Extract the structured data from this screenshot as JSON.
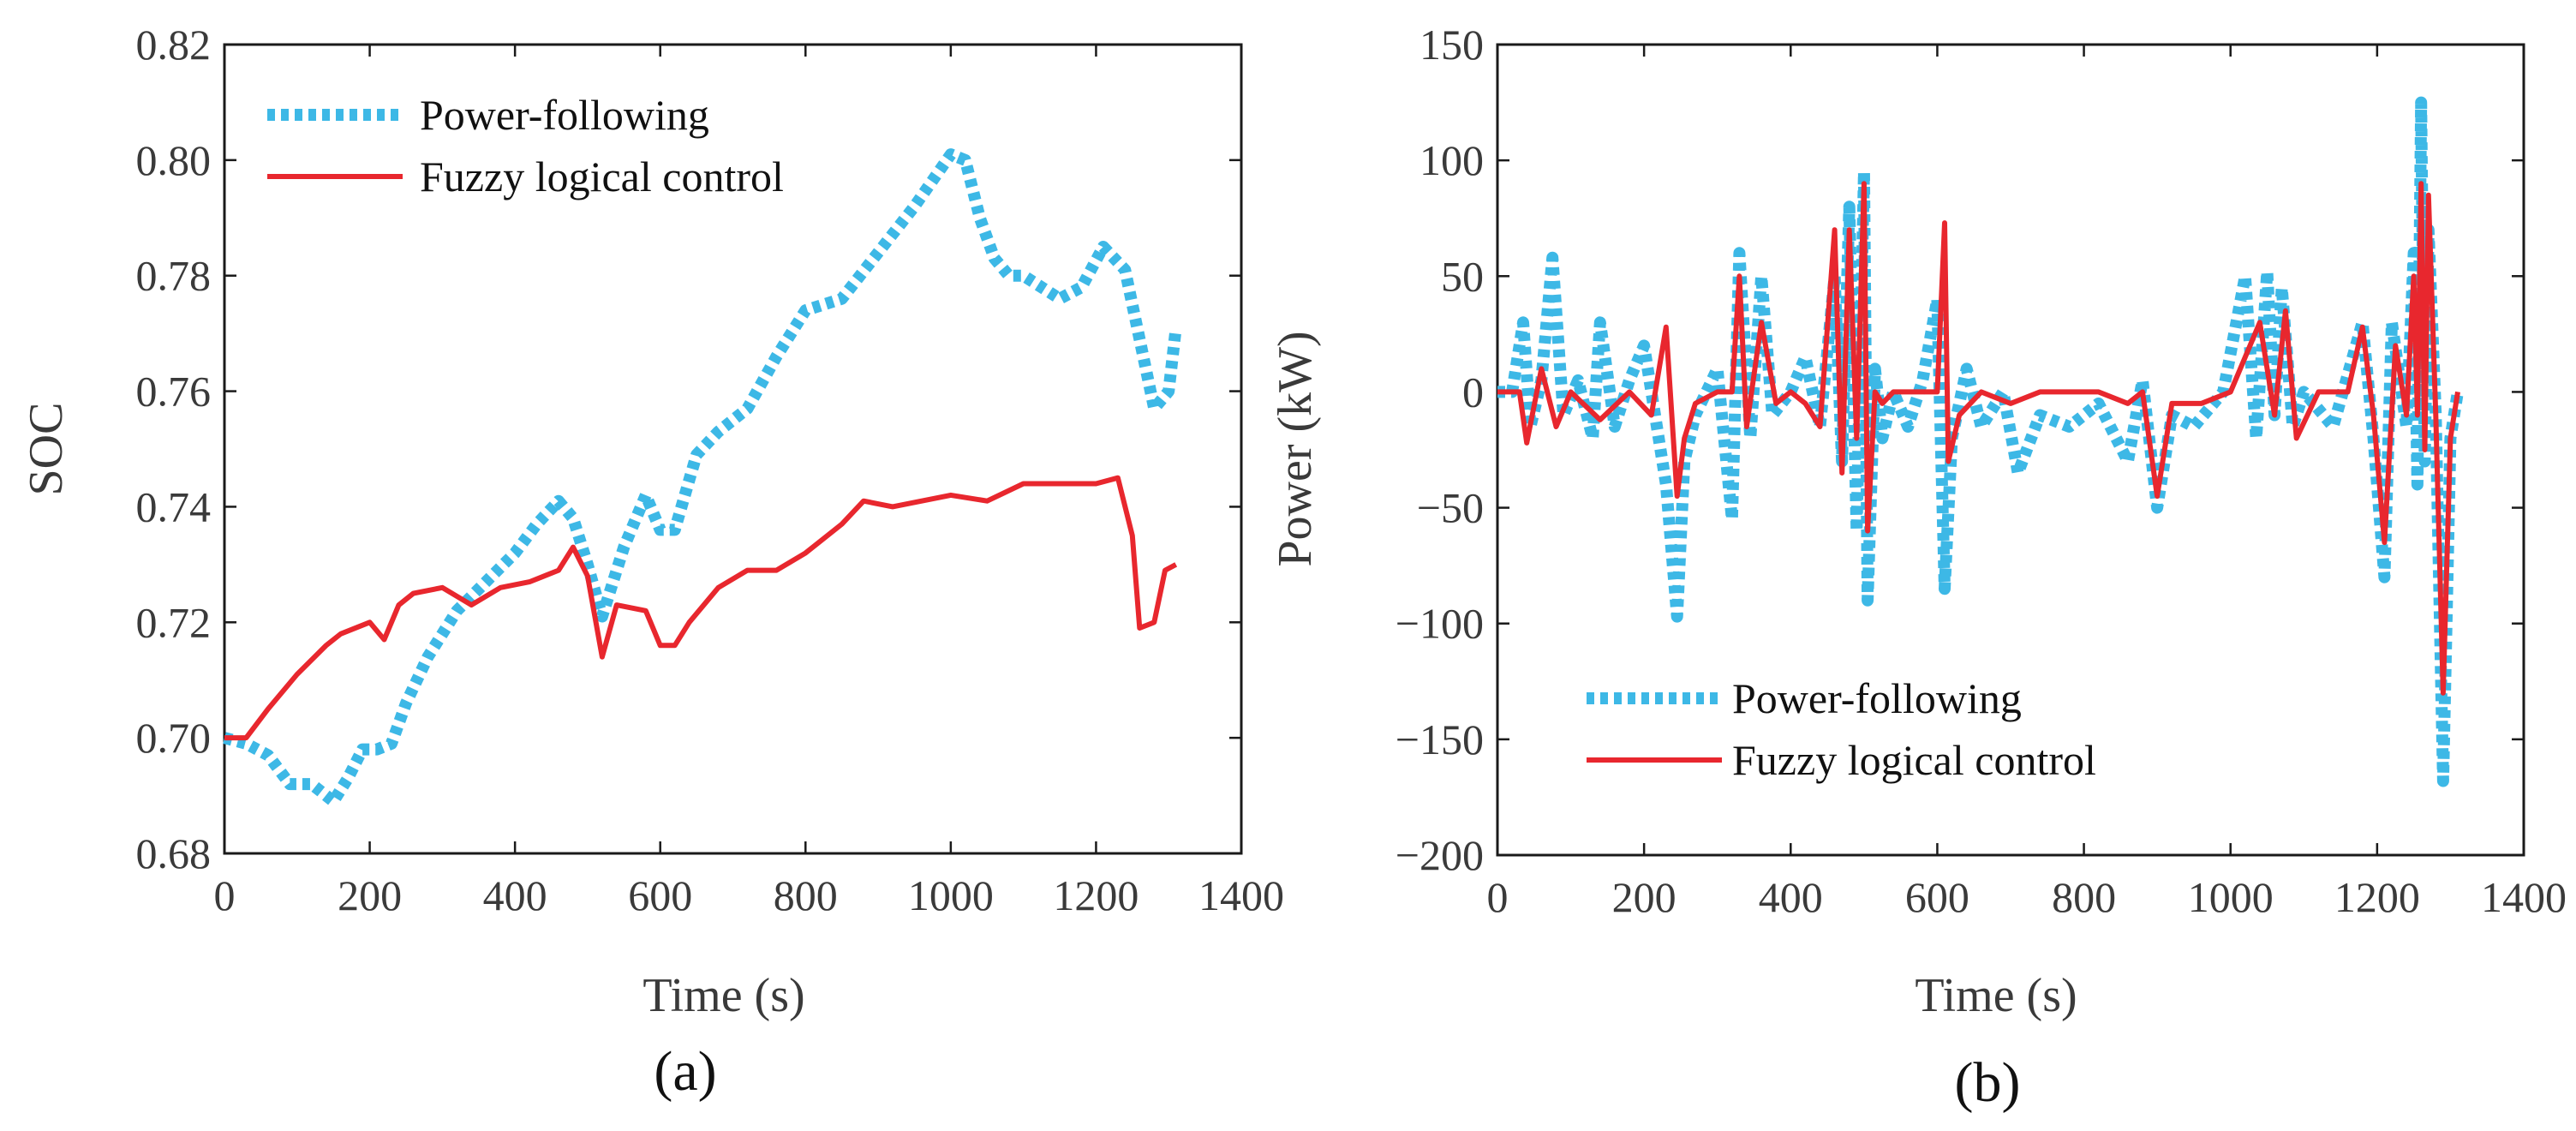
{
  "chart_data": [
    {
      "type": "line",
      "panel_label": "(a)",
      "xlabel": "Time (s)",
      "ylabel": "SOC",
      "xlim": [
        0,
        1400
      ],
      "ylim": [
        0.68,
        0.82
      ],
      "xticks": [
        0,
        200,
        400,
        600,
        800,
        1000,
        1200,
        1400
      ],
      "yticks": [
        0.68,
        0.7,
        0.72,
        0.74,
        0.76,
        0.78,
        0.8,
        0.82
      ],
      "xtick_labels": [
        "0",
        "200",
        "400",
        "600",
        "800",
        "1000",
        "1200",
        "1400"
      ],
      "ytick_labels": [
        "0.68",
        "0.70",
        "0.72",
        "0.74",
        "0.76",
        "0.78",
        "0.80",
        "0.82"
      ],
      "legend_position": "top-left",
      "series": [
        {
          "name": "Power-following",
          "color": "#3db8e6",
          "style": "dotted",
          "x": [
            0,
            30,
            60,
            90,
            120,
            150,
            170,
            190,
            210,
            230,
            250,
            280,
            320,
            360,
            400,
            430,
            460,
            480,
            500,
            520,
            550,
            580,
            600,
            620,
            650,
            680,
            720,
            760,
            800,
            850,
            900,
            950,
            1000,
            1020,
            1040,
            1060,
            1080,
            1100,
            1150,
            1180,
            1210,
            1240,
            1260,
            1280,
            1300,
            1310
          ],
          "y": [
            0.7,
            0.699,
            0.697,
            0.692,
            0.692,
            0.689,
            0.693,
            0.698,
            0.698,
            0.699,
            0.706,
            0.714,
            0.722,
            0.727,
            0.732,
            0.737,
            0.741,
            0.738,
            0.73,
            0.721,
            0.733,
            0.742,
            0.736,
            0.736,
            0.749,
            0.753,
            0.757,
            0.766,
            0.774,
            0.776,
            0.784,
            0.792,
            0.801,
            0.8,
            0.79,
            0.783,
            0.78,
            0.78,
            0.776,
            0.778,
            0.785,
            0.781,
            0.769,
            0.757,
            0.76,
            0.771
          ]
        },
        {
          "name": "Fuzzy logical control",
          "color": "#e8272e",
          "style": "solid",
          "x": [
            0,
            30,
            60,
            100,
            140,
            160,
            200,
            220,
            240,
            260,
            300,
            340,
            380,
            420,
            460,
            480,
            500,
            520,
            540,
            580,
            600,
            620,
            640,
            680,
            720,
            760,
            800,
            850,
            880,
            920,
            960,
            1000,
            1050,
            1100,
            1150,
            1200,
            1230,
            1250,
            1260,
            1280,
            1295,
            1310
          ],
          "y": [
            0.7,
            0.7,
            0.705,
            0.711,
            0.716,
            0.718,
            0.72,
            0.717,
            0.723,
            0.725,
            0.726,
            0.723,
            0.726,
            0.727,
            0.729,
            0.733,
            0.728,
            0.714,
            0.723,
            0.722,
            0.716,
            0.716,
            0.72,
            0.726,
            0.729,
            0.729,
            0.732,
            0.737,
            0.741,
            0.74,
            0.741,
            0.742,
            0.741,
            0.744,
            0.744,
            0.744,
            0.745,
            0.735,
            0.719,
            0.72,
            0.729,
            0.73
          ]
        }
      ]
    },
    {
      "type": "line",
      "panel_label": "(b)",
      "xlabel": "Time (s)",
      "ylabel": "Power (kW)",
      "xlim": [
        0,
        1400
      ],
      "ylim": [
        -200,
        150
      ],
      "xticks": [
        0,
        200,
        400,
        600,
        800,
        1000,
        1200,
        1400
      ],
      "yticks": [
        -200,
        -150,
        -100,
        -50,
        0,
        50,
        100,
        150
      ],
      "xtick_labels": [
        "0",
        "200",
        "400",
        "600",
        "800",
        "1000",
        "1200",
        "1400"
      ],
      "ytick_labels": [
        "−200",
        "−150",
        "−100",
        "−50",
        "0",
        "50",
        "100",
        "150"
      ],
      "legend_position": "bottom-center",
      "series": [
        {
          "name": "Power-following",
          "color": "#3db8e6",
          "style": "dotted",
          "x": [
            0,
            20,
            35,
            45,
            60,
            75,
            90,
            110,
            130,
            140,
            160,
            180,
            200,
            230,
            245,
            255,
            270,
            300,
            320,
            330,
            345,
            360,
            375,
            400,
            420,
            440,
            460,
            470,
            480,
            490,
            500,
            505,
            515,
            525,
            540,
            560,
            580,
            600,
            610,
            620,
            640,
            660,
            690,
            710,
            740,
            780,
            820,
            860,
            880,
            900,
            920,
            950,
            990,
            1020,
            1035,
            1050,
            1060,
            1070,
            1085,
            1100,
            1140,
            1180,
            1195,
            1210,
            1220,
            1240,
            1250,
            1255,
            1260,
            1265,
            1270,
            1280,
            1290,
            1300,
            1310
          ],
          "y": [
            0,
            0,
            30,
            -15,
            5,
            58,
            -10,
            5,
            -20,
            30,
            -15,
            5,
            20,
            -40,
            -97,
            -30,
            -10,
            10,
            -55,
            60,
            -20,
            50,
            -10,
            0,
            15,
            -15,
            50,
            -30,
            80,
            -60,
            95,
            -90,
            10,
            -20,
            0,
            -15,
            5,
            40,
            -85,
            -20,
            10,
            -15,
            0,
            -35,
            -10,
            -15,
            -5,
            -30,
            5,
            -50,
            -10,
            -15,
            0,
            50,
            -20,
            52,
            -10,
            45,
            -15,
            0,
            -15,
            30,
            -20,
            -80,
            30,
            -15,
            60,
            -40,
            125,
            -30,
            70,
            -10,
            -168,
            -20,
            0
          ]
        },
        {
          "name": "Fuzzy logical control",
          "color": "#e8272e",
          "style": "solid",
          "x": [
            0,
            30,
            40,
            60,
            80,
            100,
            140,
            180,
            210,
            230,
            245,
            255,
            270,
            300,
            320,
            330,
            340,
            360,
            380,
            400,
            420,
            440,
            460,
            470,
            480,
            490,
            500,
            505,
            515,
            525,
            540,
            580,
            600,
            610,
            615,
            630,
            660,
            700,
            740,
            780,
            820,
            860,
            880,
            900,
            920,
            960,
            1000,
            1040,
            1060,
            1075,
            1090,
            1120,
            1160,
            1180,
            1195,
            1210,
            1225,
            1240,
            1250,
            1255,
            1260,
            1265,
            1270,
            1280,
            1290,
            1300,
            1310
          ],
          "y": [
            0,
            0,
            -22,
            10,
            -15,
            0,
            -12,
            0,
            -10,
            28,
            -45,
            -20,
            -5,
            0,
            0,
            50,
            -15,
            30,
            -5,
            0,
            -5,
            -15,
            70,
            -35,
            70,
            -20,
            90,
            -60,
            0,
            -5,
            0,
            0,
            0,
            73,
            -30,
            -10,
            0,
            -5,
            0,
            0,
            0,
            -5,
            0,
            -45,
            -5,
            -5,
            0,
            30,
            -10,
            35,
            -20,
            0,
            0,
            28,
            -10,
            -65,
            20,
            -10,
            50,
            -10,
            90,
            -25,
            85,
            -10,
            -130,
            -20,
            0
          ]
        }
      ]
    }
  ]
}
